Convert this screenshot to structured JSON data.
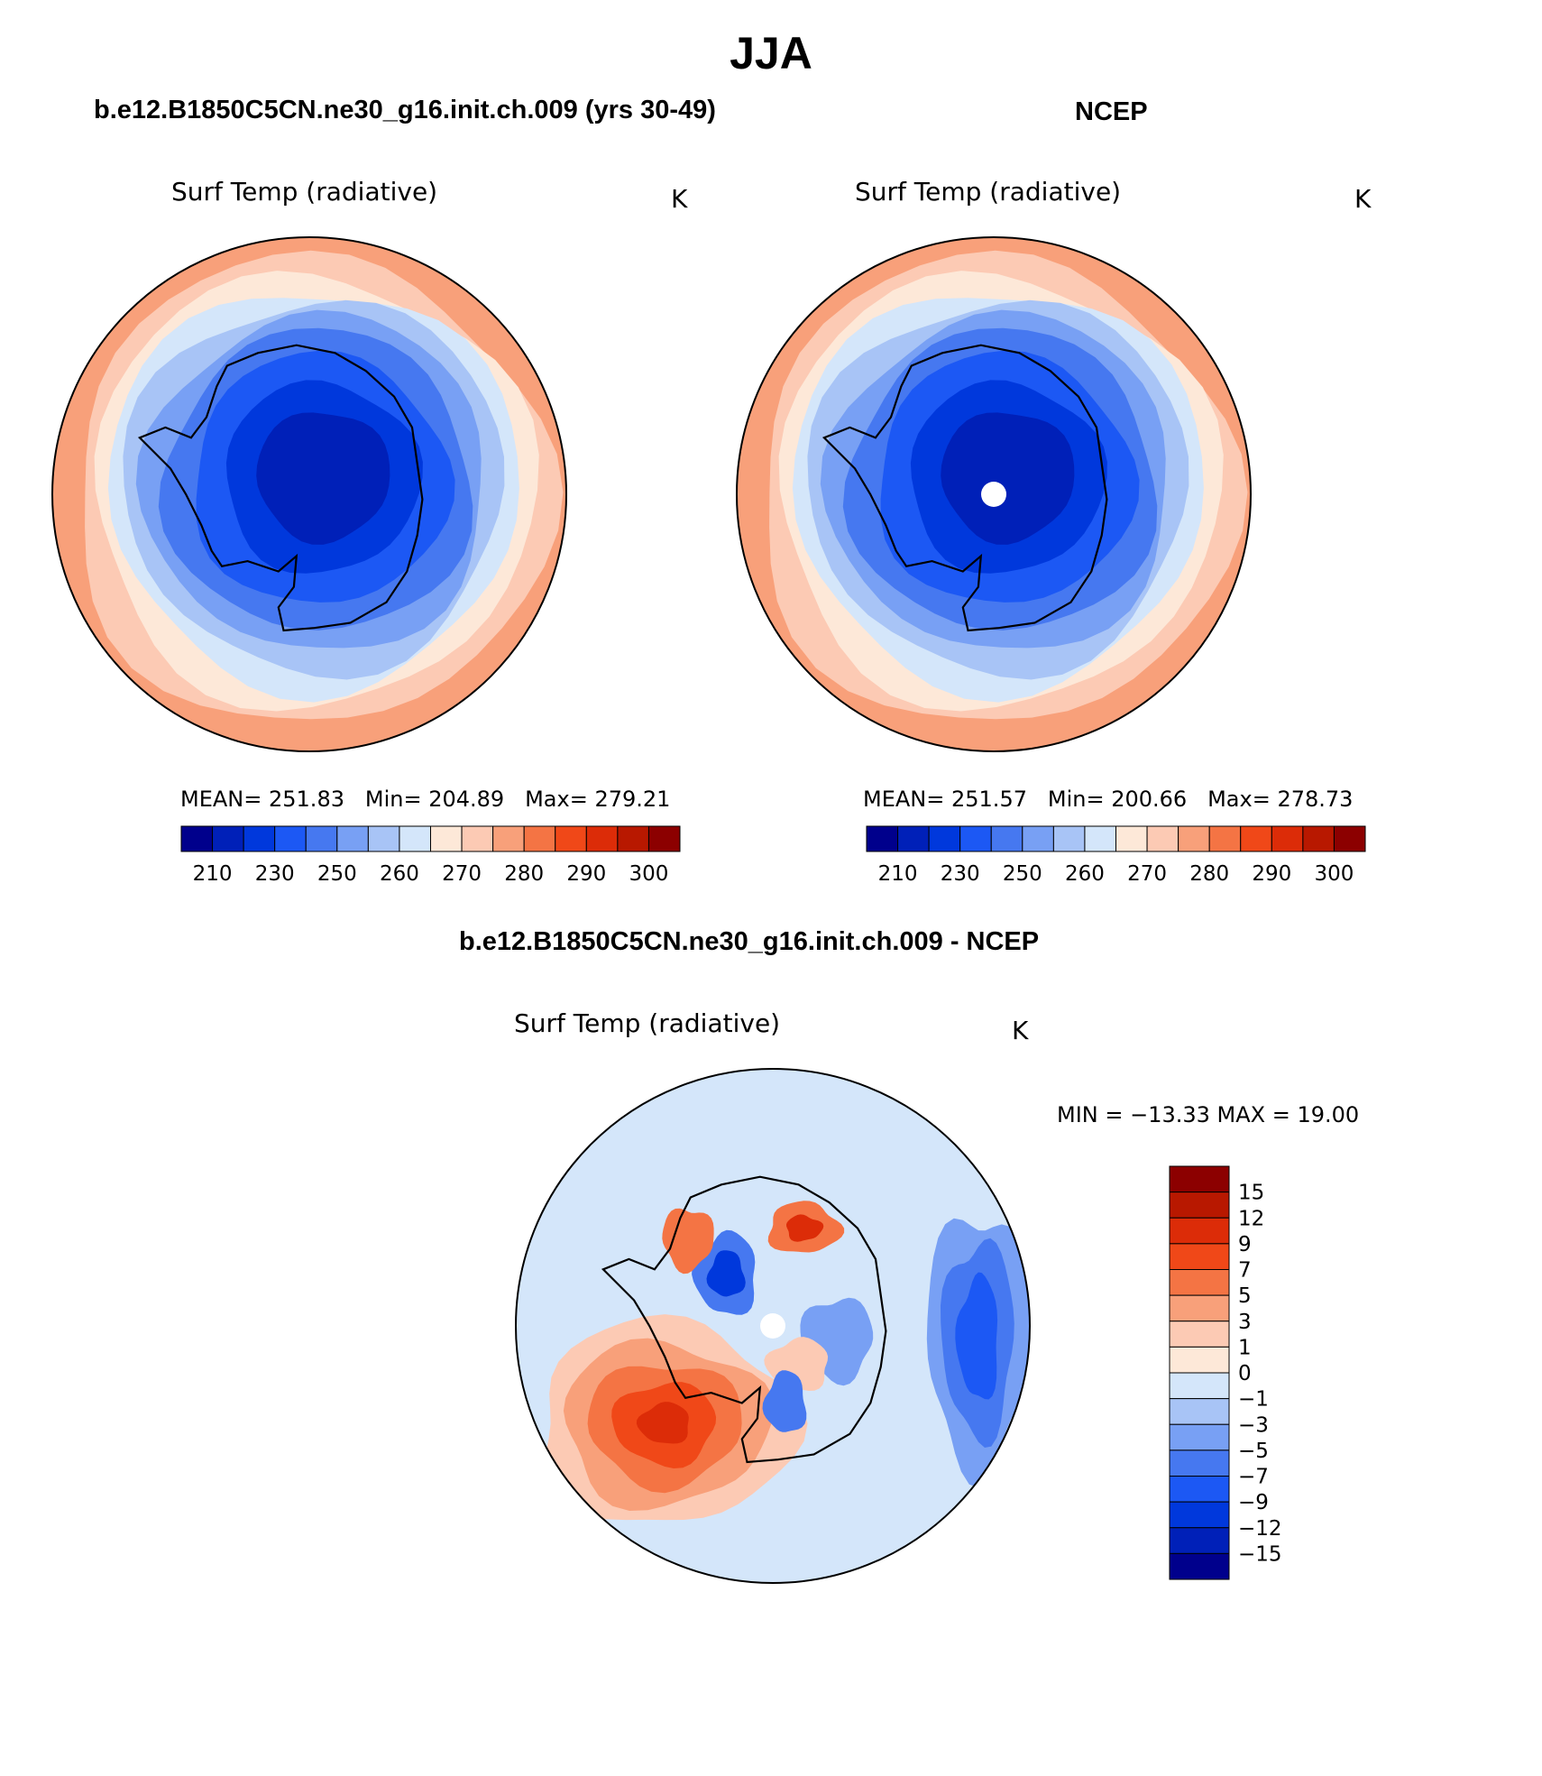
{
  "title": "JJA",
  "panels": [
    {
      "id": "model",
      "header": "b.e12.B1850C5CN.ne30_g16.init.ch.009 (yrs 30-49)",
      "variable": "Surf Temp (radiative)",
      "units": "K",
      "stats": {
        "mean_label": "MEAN=",
        "mean": "251.83",
        "min_label": "Min=",
        "min": "204.89",
        "max_label": "Max=",
        "max": "279.21"
      },
      "missing_pole": false
    },
    {
      "id": "obs",
      "header": "NCEP",
      "variable": "Surf Temp (radiative)",
      "units": "K",
      "stats": {
        "mean_label": "MEAN=",
        "mean": "251.57",
        "min_label": "Min=",
        "min": "200.66",
        "max_label": "Max=",
        "max": "278.73"
      },
      "missing_pole": true
    },
    {
      "id": "diff",
      "header": "b.e12.B1850C5CN.ne30_g16.init.ch.009 - NCEP",
      "variable": "Surf Temp (radiative)",
      "units": "K",
      "minmax_text": "MIN = −13.33 MAX =   19.00",
      "missing_pole": true
    }
  ],
  "colorbars": {
    "abs": {
      "colors": [
        "#00008c",
        "#0020b8",
        "#0038dc",
        "#1c58f4",
        "#4678f0",
        "#78a0f4",
        "#a8c4f6",
        "#d4e6fa",
        "#fde8d8",
        "#fccab4",
        "#f8a07a",
        "#f47444",
        "#f04818",
        "#dc2c08",
        "#b81800",
        "#8c0000"
      ],
      "tick_labels": [
        "210",
        "230",
        "250",
        "260",
        "270",
        "280",
        "290",
        "300"
      ]
    },
    "diff": {
      "colors": [
        "#8c0000",
        "#b81800",
        "#dc2c08",
        "#f04818",
        "#f47444",
        "#f8a07a",
        "#fccab4",
        "#fde8d8",
        "#d4e6fa",
        "#a8c4f6",
        "#78a0f4",
        "#4678f0",
        "#1c58f4",
        "#0038dc",
        "#0020b8",
        "#00008c"
      ],
      "tick_labels": [
        "15",
        "12",
        "9",
        "7",
        "5",
        "3",
        "1",
        "0",
        "−1",
        "−3",
        "−5",
        "−7",
        "−9",
        "−12",
        "−15"
      ]
    }
  },
  "map_colors": {
    "coast": "#000000",
    "abs_rings": [
      "#f8a07a",
      "#fccab4",
      "#fde8d8",
      "#d4e6fa",
      "#a8c4f6",
      "#78a0f4",
      "#4678f0",
      "#1c58f4",
      "#0038dc",
      "#0020b8"
    ],
    "diff_base": "#d4e6fa"
  }
}
